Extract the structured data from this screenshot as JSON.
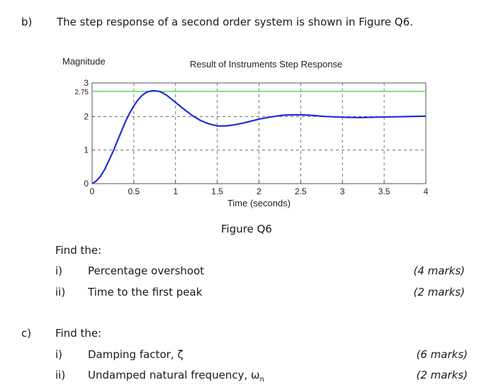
{
  "part_b": {
    "label": "b)",
    "statement": "The step response of a second order system is shown in Figure Q6.",
    "figure_caption": "Figure Q6",
    "find_label": "Find the:",
    "items": [
      {
        "num": "i)",
        "text": "Percentage overshoot",
        "marks": "(4 marks)"
      },
      {
        "num": "ii)",
        "text": "Time to the first peak",
        "marks": "(2 marks)"
      }
    ]
  },
  "part_c": {
    "label": "c)",
    "find_label": "Find the:",
    "items": [
      {
        "num": "i)",
        "text": "Damping factor, ζ",
        "marks": "(6 marks)"
      },
      {
        "num": "ii)",
        "text": "Undamped natural frequency, ω",
        "text_sub": "n",
        "marks": "(2 marks)"
      }
    ]
  },
  "chart_data": {
    "type": "line",
    "title": "Result of Instruments Step Response",
    "xlabel": "Time (seconds)",
    "ylabel": "Magnitude",
    "xlim": [
      0,
      4
    ],
    "ylim": [
      0,
      3
    ],
    "x_ticks": [
      "0",
      "0.5",
      "1",
      "1.5",
      "2",
      "2.5",
      "3",
      "3.5",
      "4"
    ],
    "y_ticks": [
      "0",
      "1",
      "2",
      "2.75",
      "3"
    ],
    "grid": true,
    "colors": {
      "response": "#1f2fd6",
      "reference": "#7ee07e",
      "grid": "#555555"
    },
    "series": [
      {
        "x": [
          0,
          0.05,
          0.1,
          0.15,
          0.2,
          0.25,
          0.3,
          0.35,
          0.4,
          0.45,
          0.5,
          0.55,
          0.6,
          0.65,
          0.7,
          0.75,
          0.8,
          0.85,
          0.9,
          0.95,
          1.0,
          1.1,
          1.2,
          1.3,
          1.4,
          1.5,
          1.6,
          1.7,
          1.8,
          1.9,
          2.0,
          2.1,
          2.2,
          2.3,
          2.4,
          2.5,
          2.6,
          2.7,
          2.8,
          2.9,
          3.0,
          3.2,
          3.4,
          3.6,
          3.8,
          4.0
        ],
        "values": [
          0,
          0.08,
          0.22,
          0.42,
          0.68,
          0.95,
          1.25,
          1.55,
          1.85,
          2.1,
          2.32,
          2.5,
          2.63,
          2.72,
          2.76,
          2.77,
          2.75,
          2.7,
          2.62,
          2.52,
          2.42,
          2.22,
          2.03,
          1.88,
          1.78,
          1.72,
          1.72,
          1.75,
          1.8,
          1.86,
          1.92,
          1.97,
          2.01,
          2.04,
          2.05,
          2.05,
          2.04,
          2.02,
          2.0,
          1.99,
          1.98,
          1.97,
          1.98,
          1.99,
          2.0,
          2.01
        ]
      },
      {
        "x": [
          0,
          4
        ],
        "values": [
          2.75,
          2.75
        ]
      }
    ]
  }
}
